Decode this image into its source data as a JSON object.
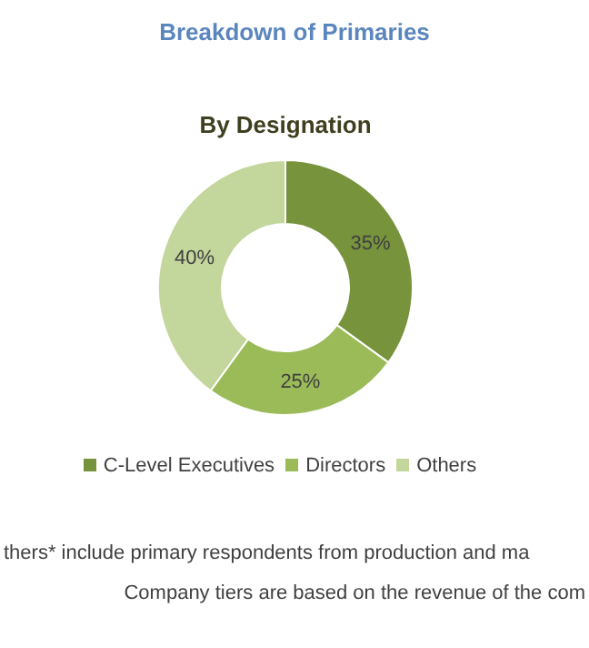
{
  "chart_data": {
    "type": "donut",
    "title": "Breakdown of Primaries",
    "subtitle": "By Designation",
    "categories": [
      "C-Level Executives",
      "Directors",
      "Others"
    ],
    "values": [
      35,
      25,
      40
    ],
    "value_labels": [
      "35%",
      "25%",
      "40%"
    ],
    "colors": [
      "#77933c",
      "#9bbb59",
      "#c3d69b"
    ],
    "legend": "bottom",
    "annotations": [
      "thers* include primary respondents from production and ma",
      "Company tiers are based on the revenue of the com"
    ]
  }
}
